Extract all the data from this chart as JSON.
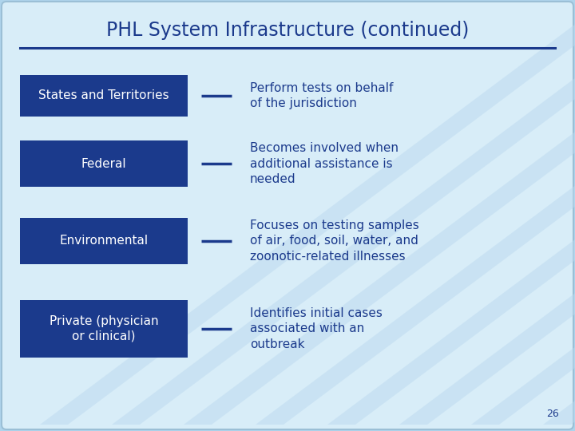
{
  "title": "PHL System Infrastructure (continued)",
  "title_color": "#1B3A8C",
  "title_fontsize": 17,
  "background_color": "#D8EDF8",
  "slide_bg": "#AED4EC",
  "box_color": "#1B3A8C",
  "box_text_color": "#FFFFFF",
  "desc_text_color": "#1B3A8C",
  "dash_color": "#1B3A8C",
  "page_number": "26",
  "stripe_color": "#BCD9EF",
  "stripe_alpha": 0.5,
  "rows": [
    {
      "label": "States and Territories",
      "description": "Perform tests on behalf\nof the jurisdiction",
      "label_align": "left"
    },
    {
      "label": "Federal",
      "description": "Becomes involved when\nadditional assistance is\nneeded",
      "label_align": "center"
    },
    {
      "label": "Environmental",
      "description": "Focuses on testing samples\nof air, food, soil, water, and\nzoonotic-related illnesses",
      "label_align": "left"
    },
    {
      "label": "Private (physician\nor clinical)",
      "description": "Identifies initial cases\nassociated with an\noutbreak",
      "label_align": "center"
    }
  ]
}
